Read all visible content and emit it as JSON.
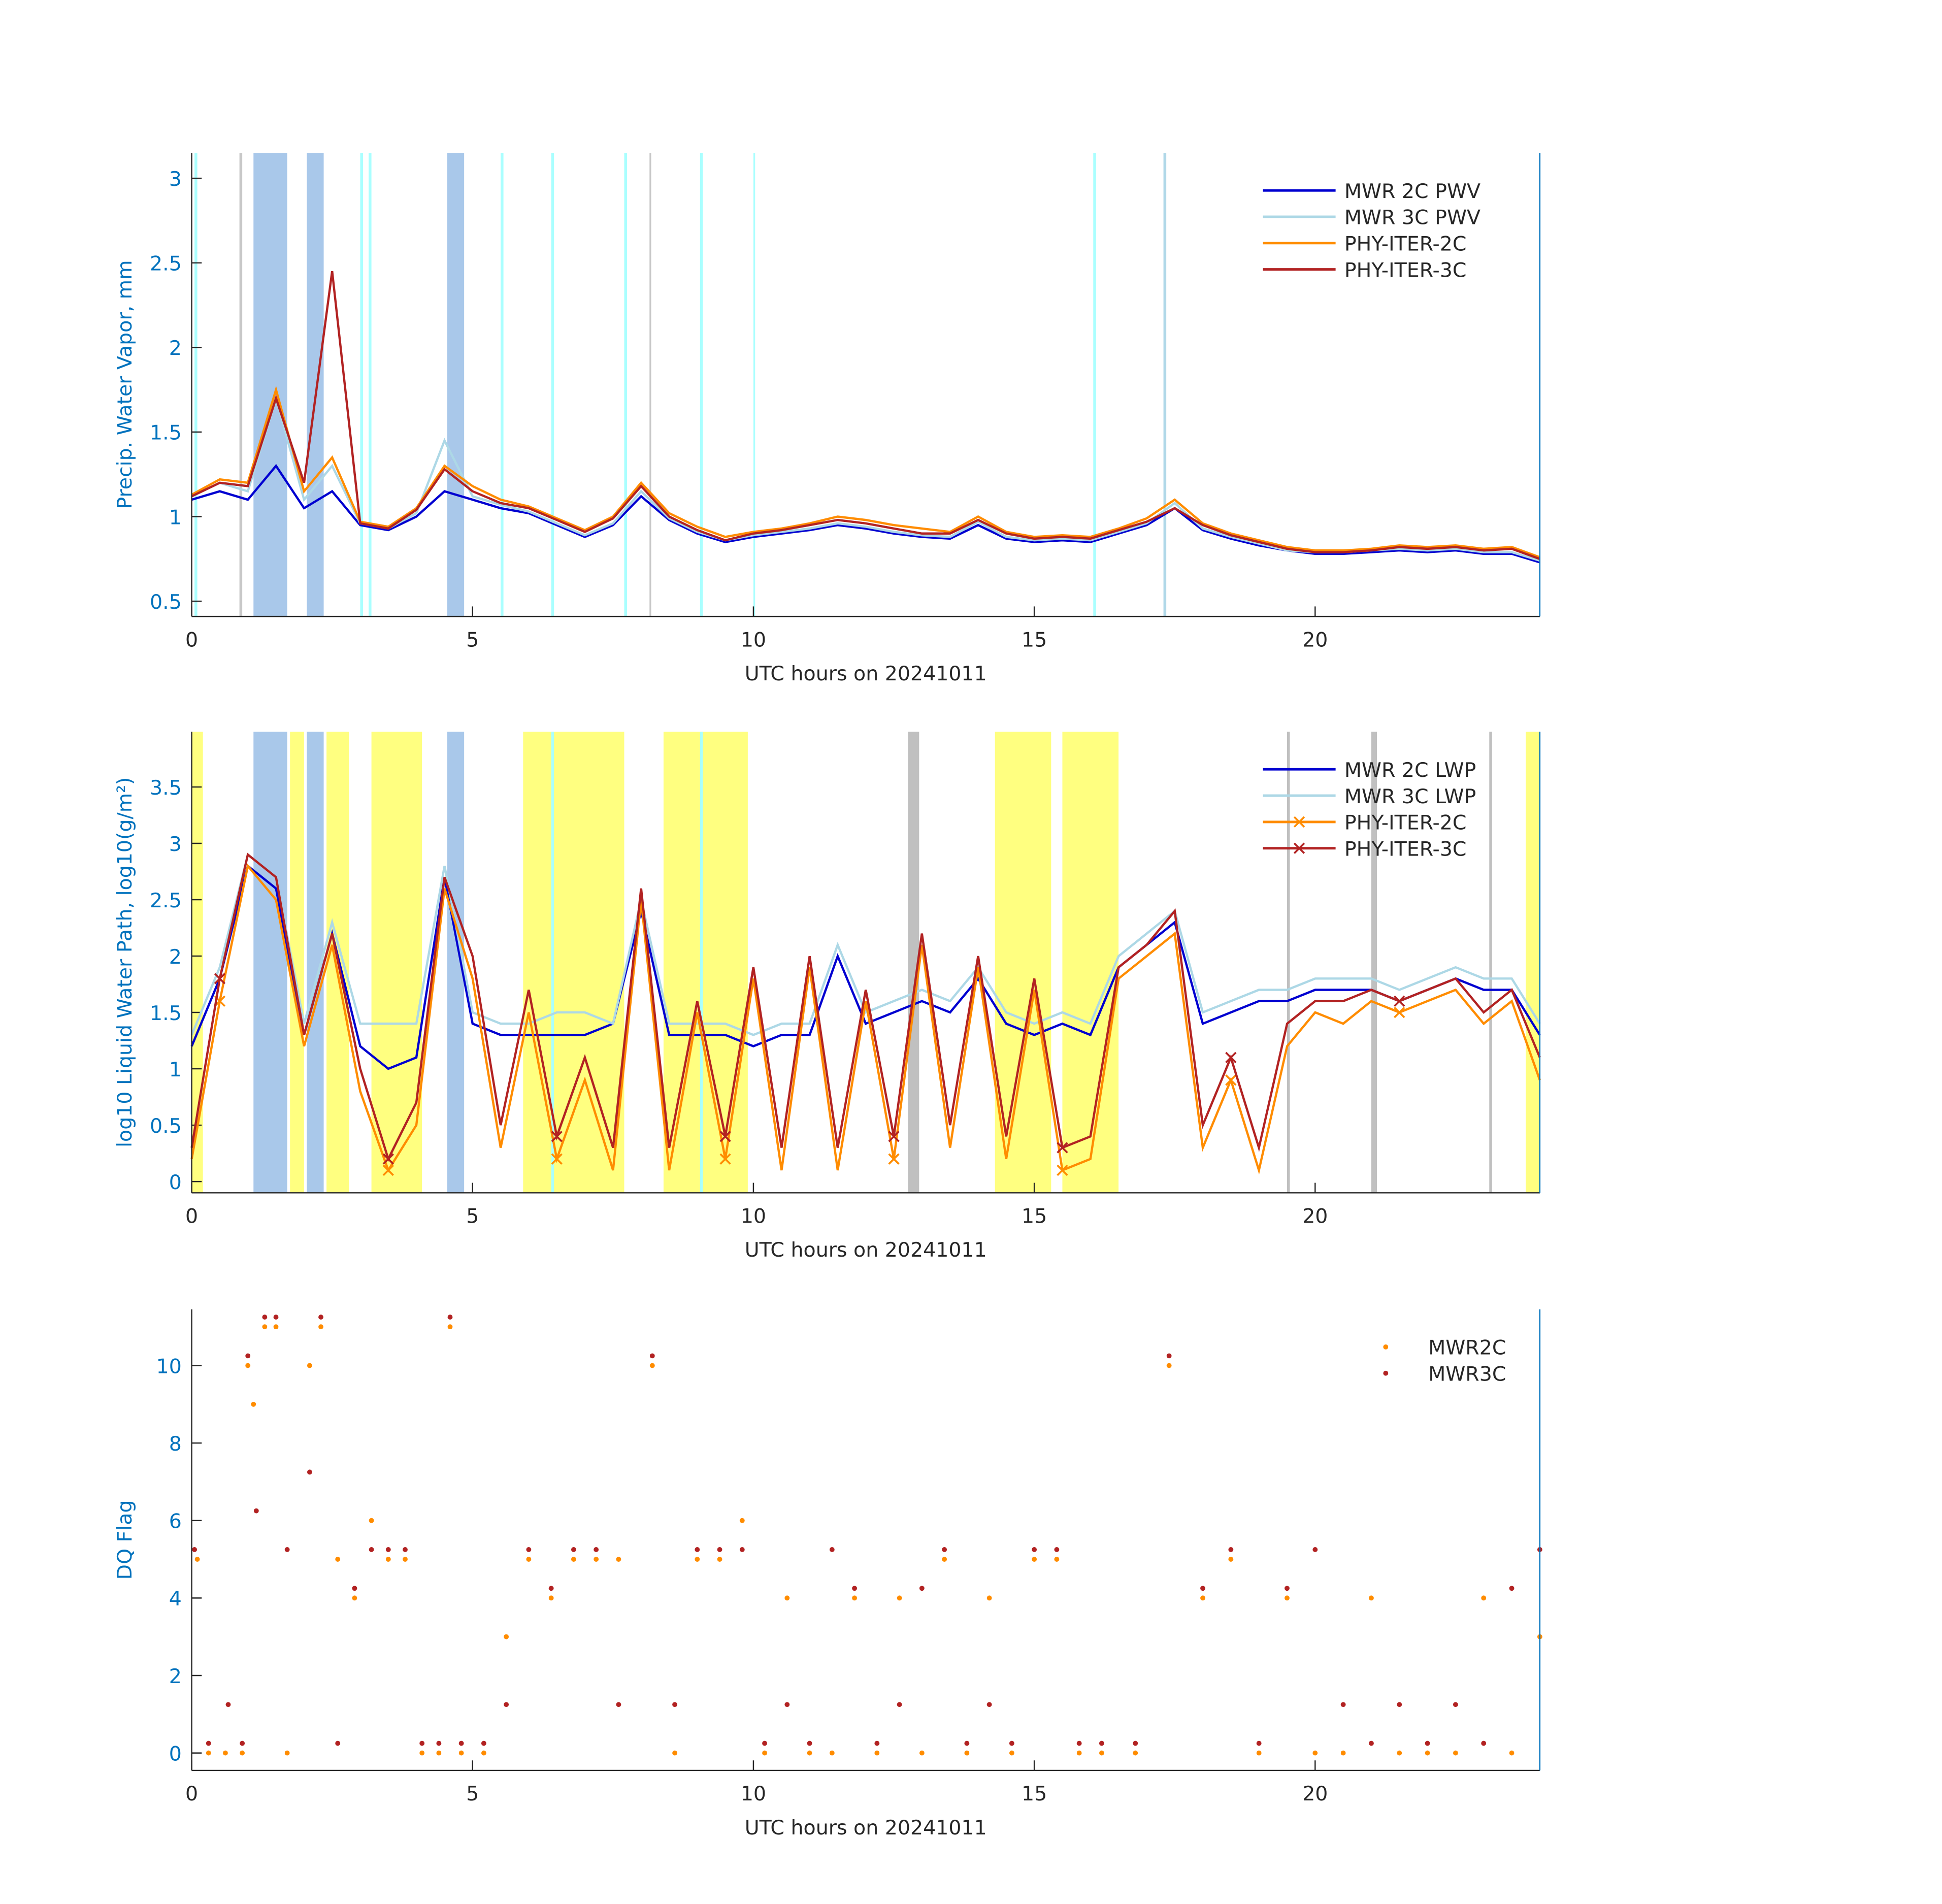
{
  "chart_data": [
    {
      "type": "line",
      "xlabel": "UTC hours on 20241011",
      "ylabel": "Precip. Water Vapor, mm",
      "xlim": [
        0,
        24
      ],
      "ylim": [
        0.41,
        3.15
      ],
      "xticks": [
        0,
        5,
        10,
        15,
        20
      ],
      "yticks": [
        0.5,
        1,
        1.5,
        2,
        2.5,
        3
      ],
      "legend": "upper right",
      "x": [
        0,
        0.5,
        1,
        1.5,
        2,
        2.5,
        3,
        3.5,
        4,
        4.5,
        5,
        5.5,
        6,
        6.5,
        7,
        7.5,
        8,
        8.5,
        9,
        9.5,
        10,
        10.5,
        11,
        11.5,
        12,
        12.5,
        13,
        13.5,
        14,
        14.5,
        15,
        15.5,
        16,
        16.5,
        17,
        17.5,
        18,
        18.5,
        19,
        19.5,
        20,
        20.5,
        21,
        21.5,
        22,
        22.5,
        23,
        23.5,
        24
      ],
      "bands": [
        {
          "x": [
            1.1,
            1.7
          ],
          "color": "#a9c8ea"
        },
        {
          "x": [
            2.05,
            2.35
          ],
          "color": "#a9c8ea"
        },
        {
          "x": [
            4.55,
            4.85
          ],
          "color": "#a9c8ea"
        },
        {
          "x": [
            0.05,
            0.1
          ],
          "color": "#aaffff"
        },
        {
          "x": [
            3.0,
            3.05
          ],
          "color": "#aaffff"
        },
        {
          "x": [
            3.15,
            3.2
          ],
          "color": "#aaffff"
        },
        {
          "x": [
            5.5,
            5.55
          ],
          "color": "#aaffff"
        },
        {
          "x": [
            6.4,
            6.45
          ],
          "color": "#aaffff"
        },
        {
          "x": [
            7.7,
            7.75
          ],
          "color": "#aaffff"
        },
        {
          "x": [
            9.05,
            9.1
          ],
          "color": "#aaffff"
        },
        {
          "x": [
            10.0,
            10.03
          ],
          "color": "#aaffff"
        },
        {
          "x": [
            16.05,
            16.1
          ],
          "color": "#aaffff"
        },
        {
          "x": [
            17.3,
            17.35
          ],
          "color": "#b0d8e8"
        },
        {
          "x": [
            0.85,
            0.9
          ],
          "color": "#c8c8c8"
        },
        {
          "x": [
            8.15,
            8.18
          ],
          "color": "#c8c8c8"
        }
      ],
      "series": [
        {
          "name": "MWR 2C PWV",
          "color": "#0000d0",
          "values": [
            1.1,
            1.15,
            1.1,
            1.3,
            1.05,
            1.15,
            0.95,
            0.92,
            1.0,
            1.15,
            1.1,
            1.05,
            1.02,
            0.95,
            0.88,
            0.95,
            1.12,
            0.98,
            0.9,
            0.85,
            0.88,
            0.9,
            0.92,
            0.95,
            0.93,
            0.9,
            0.88,
            0.87,
            0.95,
            0.87,
            0.85,
            0.86,
            0.85,
            0.9,
            0.95,
            1.05,
            0.92,
            0.87,
            0.83,
            0.8,
            0.78,
            0.78,
            0.79,
            0.8,
            0.79,
            0.8,
            0.78,
            0.78,
            0.73
          ]
        },
        {
          "name": "MWR 3C PWV",
          "color": "#add8e6",
          "values": [
            1.12,
            1.2,
            1.15,
            1.7,
            1.1,
            1.3,
            0.96,
            0.93,
            1.02,
            1.45,
            1.12,
            1.07,
            1.03,
            0.96,
            0.89,
            0.96,
            1.15,
            0.99,
            0.91,
            0.86,
            0.89,
            0.91,
            0.93,
            0.96,
            0.94,
            0.91,
            0.89,
            0.88,
            0.97,
            0.88,
            0.86,
            0.87,
            0.86,
            0.91,
            0.96,
            1.08,
            0.93,
            0.88,
            0.84,
            0.8,
            0.79,
            0.79,
            0.8,
            0.81,
            0.8,
            0.81,
            0.79,
            0.79,
            0.74
          ]
        },
        {
          "name": "PHY-ITER-2C",
          "color": "#ff8c00",
          "values": [
            1.13,
            1.22,
            1.2,
            1.75,
            1.15,
            1.35,
            0.97,
            0.94,
            1.05,
            1.3,
            1.18,
            1.1,
            1.06,
            0.99,
            0.92,
            1.0,
            1.2,
            1.02,
            0.94,
            0.88,
            0.91,
            0.93,
            0.96,
            1.0,
            0.98,
            0.95,
            0.93,
            0.91,
            1.0,
            0.91,
            0.88,
            0.89,
            0.88,
            0.93,
            0.99,
            1.1,
            0.96,
            0.9,
            0.86,
            0.82,
            0.8,
            0.8,
            0.81,
            0.83,
            0.82,
            0.83,
            0.81,
            0.82,
            0.76
          ]
        },
        {
          "name": "PHY-ITER-3C",
          "color": "#b22222",
          "values": [
            1.12,
            1.2,
            1.18,
            1.7,
            1.2,
            2.45,
            0.96,
            0.93,
            1.04,
            1.28,
            1.15,
            1.08,
            1.05,
            0.98,
            0.91,
            0.99,
            1.18,
            1.0,
            0.92,
            0.86,
            0.9,
            0.92,
            0.95,
            0.98,
            0.96,
            0.93,
            0.9,
            0.9,
            0.98,
            0.9,
            0.87,
            0.88,
            0.87,
            0.92,
            0.97,
            1.05,
            0.95,
            0.89,
            0.85,
            0.81,
            0.79,
            0.79,
            0.8,
            0.82,
            0.81,
            0.82,
            0.8,
            0.81,
            0.75
          ]
        }
      ]
    },
    {
      "type": "line",
      "xlabel": "UTC hours on 20241011",
      "ylabel": "log10 Liquid Water Path, log10(g/m²)",
      "xlim": [
        0,
        24
      ],
      "ylim": [
        -0.1,
        3.99
      ],
      "xticks": [
        0,
        5,
        10,
        15,
        20
      ],
      "yticks": [
        0,
        0.5,
        1,
        1.5,
        2,
        2.5,
        3,
        3.5
      ],
      "legend": "upper right",
      "x": [
        0,
        0.5,
        1,
        1.5,
        2,
        2.5,
        3,
        3.5,
        4,
        4.5,
        5,
        5.5,
        6,
        6.5,
        7,
        7.5,
        8,
        8.5,
        9,
        9.5,
        10,
        10.5,
        11,
        11.5,
        12,
        12.5,
        13,
        13.5,
        14,
        14.5,
        15,
        15.5,
        16,
        16.5,
        17,
        17.5,
        18,
        18.5,
        19,
        19.5,
        20,
        20.5,
        21,
        21.5,
        22,
        22.5,
        23,
        23.5,
        24
      ],
      "bands": [
        {
          "x": [
            0,
            0.2
          ],
          "color": "#ffff80"
        },
        {
          "x": [
            1.75,
            2.0
          ],
          "color": "#ffff80"
        },
        {
          "x": [
            2.4,
            2.8
          ],
          "color": "#ffff80"
        },
        {
          "x": [
            3.2,
            4.1
          ],
          "color": "#ffff80"
        },
        {
          "x": [
            5.9,
            7.7
          ],
          "color": "#ffff80"
        },
        {
          "x": [
            8.4,
            9.9
          ],
          "color": "#ffff80"
        },
        {
          "x": [
            14.3,
            15.3
          ],
          "color": "#ffff80"
        },
        {
          "x": [
            15.5,
            16.5
          ],
          "color": "#ffff80"
        },
        {
          "x": [
            23.75,
            24
          ],
          "color": "#ffff80"
        },
        {
          "x": [
            1.1,
            1.7
          ],
          "color": "#a9c8ea"
        },
        {
          "x": [
            2.05,
            2.35
          ],
          "color": "#a9c8ea"
        },
        {
          "x": [
            4.55,
            4.85
          ],
          "color": "#a9c8ea"
        },
        {
          "x": [
            12.75,
            12.95
          ],
          "color": "#c0c0c0"
        },
        {
          "x": [
            21.0,
            21.1
          ],
          "color": "#c0c0c0"
        },
        {
          "x": [
            23.1,
            23.15
          ],
          "color": "#c0c0c0"
        },
        {
          "x": [
            19.5,
            19.55
          ],
          "color": "#c0c0c0"
        },
        {
          "x": [
            6.4,
            6.45
          ],
          "color": "#aaffff"
        },
        {
          "x": [
            9.05,
            9.1
          ],
          "color": "#aaffff"
        }
      ],
      "series": [
        {
          "name": "MWR 2C LWP",
          "color": "#0000d0",
          "values": [
            1.2,
            1.8,
            2.8,
            2.6,
            1.3,
            2.2,
            1.2,
            1.0,
            1.1,
            2.7,
            1.4,
            1.3,
            1.3,
            1.3,
            1.3,
            1.4,
            2.4,
            1.3,
            1.3,
            1.3,
            1.2,
            1.3,
            1.3,
            2.0,
            1.4,
            1.5,
            1.6,
            1.5,
            1.8,
            1.4,
            1.3,
            1.4,
            1.3,
            1.9,
            2.1,
            2.3,
            1.4,
            1.5,
            1.6,
            1.6,
            1.7,
            1.7,
            1.7,
            1.6,
            1.7,
            1.8,
            1.7,
            1.7,
            1.3
          ]
        },
        {
          "name": "MWR 3C LWP",
          "color": "#add8e6",
          "values": [
            1.3,
            1.9,
            2.9,
            2.7,
            1.4,
            2.3,
            1.4,
            1.4,
            1.4,
            2.8,
            1.5,
            1.4,
            1.4,
            1.5,
            1.5,
            1.4,
            2.5,
            1.4,
            1.4,
            1.4,
            1.3,
            1.4,
            1.4,
            2.1,
            1.5,
            1.6,
            1.7,
            1.6,
            1.9,
            1.5,
            1.4,
            1.5,
            1.4,
            2.0,
            2.2,
            2.4,
            1.5,
            1.6,
            1.7,
            1.7,
            1.8,
            1.8,
            1.8,
            1.7,
            1.8,
            1.9,
            1.8,
            1.8,
            1.4
          ]
        },
        {
          "name": "PHY-ITER-2C",
          "color": "#ff8c00",
          "marker": "x",
          "values": [
            0.2,
            1.6,
            2.8,
            2.5,
            1.2,
            2.1,
            0.8,
            0.1,
            0.5,
            2.6,
            1.8,
            0.3,
            1.5,
            0.2,
            0.9,
            0.1,
            2.5,
            0.1,
            1.5,
            0.2,
            1.8,
            0.1,
            1.9,
            0.1,
            1.6,
            0.2,
            2.1,
            0.3,
            1.9,
            0.2,
            1.7,
            0.1,
            0.2,
            1.8,
            2.0,
            2.2,
            0.3,
            0.9,
            0.1,
            1.2,
            1.5,
            1.4,
            1.6,
            1.5,
            1.6,
            1.7,
            1.4,
            1.6,
            0.9
          ]
        },
        {
          "name": "PHY-ITER-3C",
          "color": "#b22222",
          "marker": "x",
          "values": [
            0.3,
            1.8,
            2.9,
            2.7,
            1.3,
            2.2,
            1.0,
            0.2,
            0.7,
            2.7,
            2.0,
            0.5,
            1.7,
            0.4,
            1.1,
            0.3,
            2.6,
            0.3,
            1.6,
            0.4,
            1.9,
            0.3,
            2.0,
            0.3,
            1.7,
            0.4,
            2.2,
            0.5,
            2.0,
            0.4,
            1.8,
            0.3,
            0.4,
            1.9,
            2.1,
            2.4,
            0.5,
            1.1,
            0.3,
            1.4,
            1.6,
            1.6,
            1.7,
            1.6,
            1.7,
            1.8,
            1.5,
            1.7,
            1.1
          ]
        }
      ]
    },
    {
      "type": "scatter",
      "xlabel": "UTC hours on 20241011",
      "ylabel": "DQ Flag",
      "xlim": [
        0,
        24
      ],
      "ylim": [
        -0.45,
        11.45
      ],
      "xticks": [
        0,
        5,
        10,
        15,
        20
      ],
      "yticks": [
        0,
        2,
        4,
        6,
        8,
        10
      ],
      "legend": "upper right",
      "series": [
        {
          "name": "MWR2C",
          "color": "#ff8c00",
          "x": [
            0.1,
            0.3,
            0.6,
            0.9,
            1.0,
            1.1,
            1.3,
            1.5,
            1.7,
            2.1,
            2.3,
            2.6,
            2.9,
            3.2,
            3.5,
            3.8,
            4.1,
            4.4,
            4.6,
            4.8,
            5.2,
            5.6,
            6.0,
            6.4,
            6.8,
            7.2,
            7.6,
            8.2,
            8.6,
            9.0,
            9.4,
            9.8,
            10.2,
            10.6,
            11.0,
            11.4,
            11.8,
            12.2,
            12.6,
            13.0,
            13.4,
            13.8,
            14.2,
            14.6,
            15.0,
            15.4,
            15.8,
            16.2,
            16.8,
            17.4,
            18.0,
            18.5,
            19.0,
            19.5,
            20.0,
            20.5,
            21.0,
            21.5,
            22.0,
            22.5,
            23.0,
            23.5,
            24.0
          ],
          "values": [
            5,
            0,
            0,
            0,
            10,
            9,
            11,
            11,
            0,
            10,
            11,
            5,
            4,
            6,
            5,
            5,
            0,
            0,
            11,
            0,
            0,
            3,
            5,
            4,
            5,
            5,
            5,
            10,
            0,
            5,
            5,
            6,
            0,
            4,
            0,
            0,
            4,
            0,
            4,
            0,
            5,
            0,
            4,
            0,
            5,
            5,
            0,
            0,
            0,
            10,
            4,
            5,
            0,
            4,
            0,
            0,
            4,
            0,
            0,
            0,
            4,
            0,
            3
          ]
        },
        {
          "name": "MWR3C",
          "color": "#b22222",
          "x": [
            0.05,
            0.3,
            0.65,
            0.9,
            1.0,
            1.15,
            1.3,
            1.5,
            1.7,
            2.1,
            2.3,
            2.6,
            2.9,
            3.2,
            3.5,
            3.8,
            4.1,
            4.4,
            4.6,
            4.8,
            5.2,
            5.6,
            6.0,
            6.4,
            6.8,
            7.2,
            7.6,
            8.2,
            8.6,
            9.0,
            9.4,
            9.8,
            10.2,
            10.6,
            11.0,
            11.4,
            11.8,
            12.2,
            12.6,
            13.0,
            13.4,
            13.8,
            14.2,
            14.6,
            15.0,
            15.4,
            15.8,
            16.2,
            16.8,
            17.4,
            18.0,
            18.5,
            19.0,
            19.5,
            20.0,
            20.5,
            21.0,
            21.5,
            22.0,
            22.5,
            23.0,
            23.5,
            24.0
          ],
          "values": [
            5.25,
            0.25,
            1.25,
            0.25,
            10.25,
            6.25,
            11.25,
            11.25,
            5.25,
            7.25,
            11.25,
            0.25,
            4.25,
            5.25,
            5.25,
            5.25,
            0.25,
            0.25,
            11.25,
            0.25,
            0.25,
            1.25,
            5.25,
            4.25,
            5.25,
            5.25,
            1.25,
            10.25,
            1.25,
            5.25,
            5.25,
            5.25,
            0.25,
            1.25,
            0.25,
            5.25,
            4.25,
            0.25,
            1.25,
            4.25,
            5.25,
            0.25,
            1.25,
            0.25,
            5.25,
            5.25,
            0.25,
            0.25,
            0.25,
            10.25,
            4.25,
            5.25,
            0.25,
            4.25,
            5.25,
            1.25,
            0.25,
            1.25,
            0.25,
            1.25,
            0.25,
            4.25,
            5.25
          ]
        }
      ]
    }
  ]
}
